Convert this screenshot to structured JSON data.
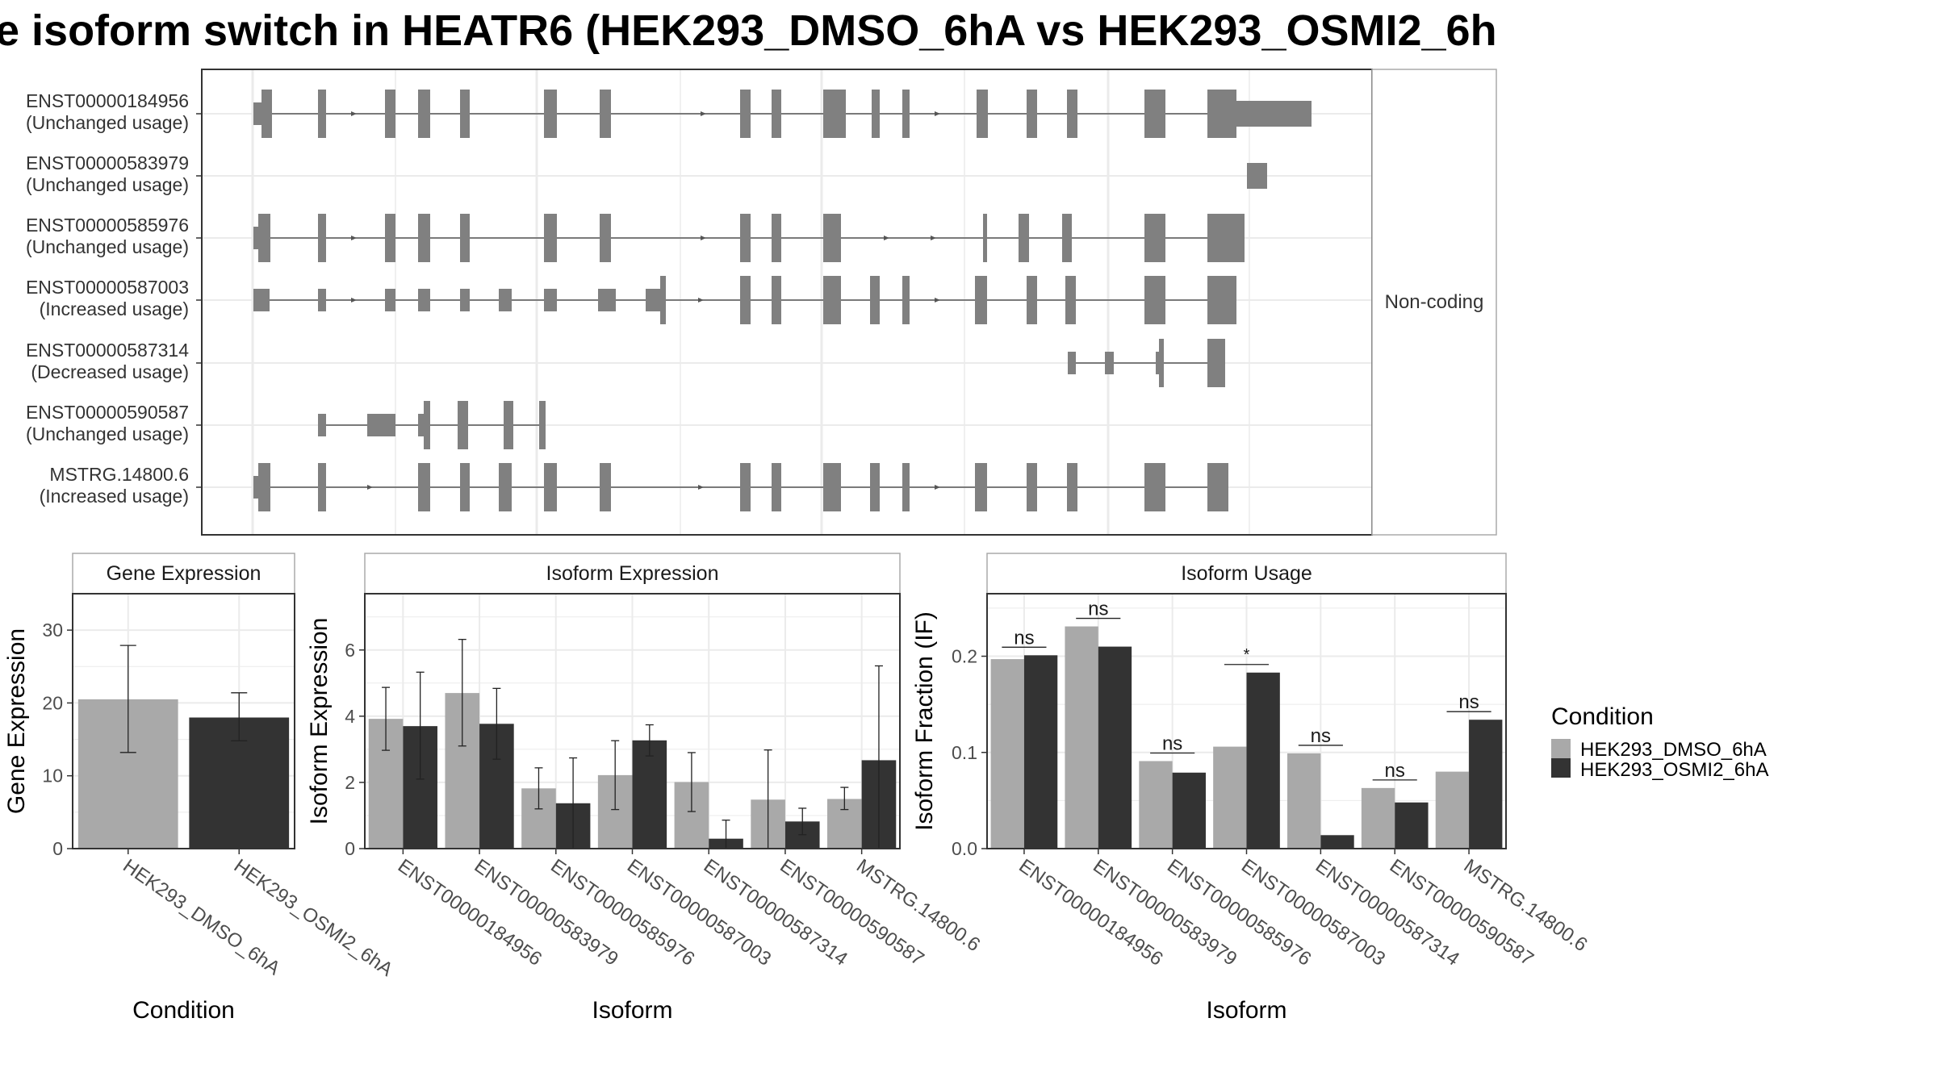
{
  "title": "e isoform switch in HEATR6 (HEK293_DMSO_6hA vs HEK293_OSMI2_6h",
  "colors": {
    "dmso": "#a9a9a9",
    "osmi": "#333333",
    "exon": "#808080",
    "grid": "#ebebeb",
    "frame": "#333333",
    "text": "#333333"
  },
  "chart_data": [
    {
      "type": "transcript_structure",
      "category_label": "Non-coding",
      "transcripts": [
        {
          "id": "ENST00000184956",
          "usage": "(Unchanged usage)"
        },
        {
          "id": "ENST00000583979",
          "usage": "(Unchanged usage)"
        },
        {
          "id": "ENST00000585976",
          "usage": "(Unchanged usage)"
        },
        {
          "id": "ENST00000587003",
          "usage": "(Increased usage)"
        },
        {
          "id": "ENST00000587314",
          "usage": "(Decreased usage)"
        },
        {
          "id": "ENST00000590587",
          "usage": "(Unchanged usage)"
        },
        {
          "id": "MSTRG.14800.6",
          "usage": "(Increased usage)"
        }
      ]
    },
    {
      "type": "bar",
      "panel_title": "Gene Expression",
      "xlabel": "Condition",
      "ylabel": "Gene Expression",
      "ylim": [
        0,
        35
      ],
      "yticks": [
        0,
        10,
        20,
        30
      ],
      "categories": [
        "HEK293_DMSO_6hA",
        "HEK293_OSMI2_6hA"
      ],
      "values": [
        20.5,
        18.0
      ],
      "err_low": [
        13.2,
        14.8
      ],
      "err_high": [
        27.9,
        21.4
      ]
    },
    {
      "type": "bar",
      "panel_title": "Isoform Expression",
      "xlabel": "Isoform",
      "ylabel": "Isoform Expression",
      "ylim": [
        0,
        7.7
      ],
      "yticks": [
        0,
        2,
        4,
        6
      ],
      "categories": [
        "ENST00000184956",
        "ENST00000583979",
        "ENST00000585976",
        "ENST00000587003",
        "ENST00000587314",
        "ENST00000590587",
        "MSTRG.14800.6"
      ],
      "series": [
        {
          "name": "HEK293_DMSO_6hA",
          "values": [
            3.92,
            4.7,
            1.82,
            2.22,
            2.01,
            1.48,
            1.5
          ],
          "err_low": [
            2.97,
            3.1,
            1.2,
            1.18,
            1.12,
            0.0,
            1.18
          ],
          "err_high": [
            4.87,
            6.32,
            2.44,
            3.26,
            2.9,
            2.98,
            1.85
          ]
        },
        {
          "name": "HEK293_OSMI2_6hA",
          "values": [
            3.7,
            3.77,
            1.37,
            3.27,
            0.3,
            0.82,
            2.67
          ],
          "err_low": [
            2.1,
            2.7,
            0.0,
            2.8,
            0.0,
            0.42,
            0.0
          ],
          "err_high": [
            5.33,
            4.84,
            2.74,
            3.74,
            0.86,
            1.22,
            5.52
          ]
        }
      ]
    },
    {
      "type": "bar",
      "panel_title": "Isoform Usage",
      "xlabel": "Isoform",
      "ylabel": "Isoform Fraction (IF)",
      "ylim": [
        0,
        0.265
      ],
      "yticks": [
        0.0,
        0.1,
        0.2
      ],
      "ytick_labels": [
        "0.0",
        "0.1",
        "0.2"
      ],
      "categories": [
        "ENST00000184956",
        "ENST00000583979",
        "ENST00000585976",
        "ENST00000587003",
        "ENST00000587314",
        "ENST00000590587",
        "MSTRG.14800.6"
      ],
      "series": [
        {
          "name": "HEK293_DMSO_6hA",
          "values": [
            0.197,
            0.231,
            0.091,
            0.106,
            0.099,
            0.063,
            0.08
          ]
        },
        {
          "name": "HEK293_OSMI2_6hA",
          "values": [
            0.201,
            0.21,
            0.079,
            0.183,
            0.014,
            0.048,
            0.134
          ]
        }
      ],
      "significance": [
        "ns",
        "ns",
        "ns",
        "*",
        "ns",
        "ns",
        "ns"
      ]
    }
  ],
  "legend": {
    "title": "Condition",
    "entries": [
      "HEK293_DMSO_6hA",
      "HEK293_OSMI2_6hA"
    ]
  }
}
